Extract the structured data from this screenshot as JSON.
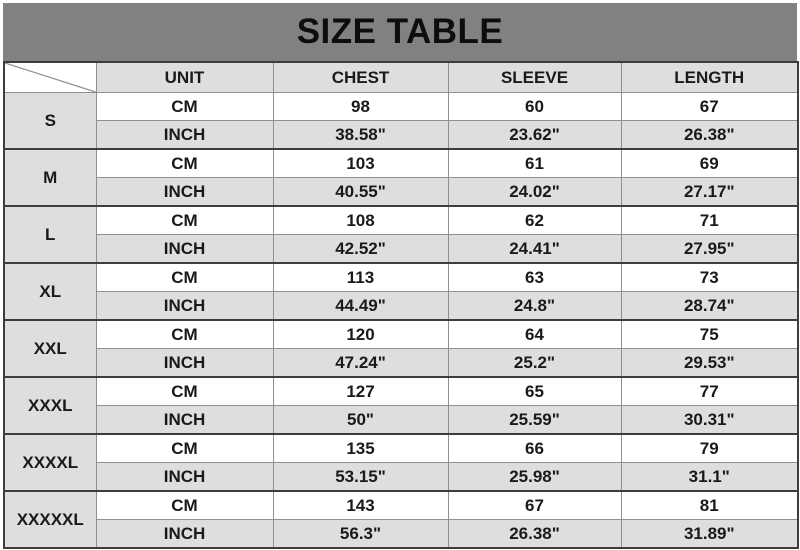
{
  "title": "SIZE TABLE",
  "colors": {
    "title_bar_bg": "#818181",
    "title_text": "#0d0d0d",
    "header_cell_bg": "#dedede",
    "shaded_row_bg": "#dedede",
    "white_row_bg": "#ffffff",
    "thin_border": "#8f8f8f",
    "thick_border": "#3d3d3d",
    "cell_text": "#1a1a1a"
  },
  "chart_data": {
    "type": "table",
    "title": "SIZE TABLE",
    "columns": [
      "",
      "UNIT",
      "CHEST",
      "SLEEVE",
      "LENGTH"
    ],
    "rows": [
      [
        "S",
        "CM",
        "98",
        "60",
        "67"
      ],
      [
        "S",
        "INCH",
        "38.58\"",
        "23.62\"",
        "26.38\""
      ],
      [
        "M",
        "CM",
        "103",
        "61",
        "69"
      ],
      [
        "M",
        "INCH",
        "40.55\"",
        "24.02\"",
        "27.17\""
      ],
      [
        "L",
        "CM",
        "108",
        "62",
        "71"
      ],
      [
        "L",
        "INCH",
        "42.52\"",
        "24.41\"",
        "27.95\""
      ],
      [
        "XL",
        "CM",
        "113",
        "63",
        "73"
      ],
      [
        "XL",
        "INCH",
        "44.49\"",
        "24.8\"",
        "28.74\""
      ],
      [
        "XXL",
        "CM",
        "120",
        "64",
        "75"
      ],
      [
        "XXL",
        "INCH",
        "47.24\"",
        "25.2\"",
        "29.53\""
      ],
      [
        "XXXL",
        "CM",
        "127",
        "65",
        "77"
      ],
      [
        "XXXL",
        "INCH",
        "50\"",
        "25.59\"",
        "30.31\""
      ],
      [
        "XXXXL",
        "CM",
        "135",
        "66",
        "79"
      ],
      [
        "XXXXL",
        "INCH",
        "53.15\"",
        "25.98\"",
        "31.1\""
      ],
      [
        "XXXXXL",
        "CM",
        "143",
        "67",
        "81"
      ],
      [
        "XXXXXL",
        "INCH",
        "56.3\"",
        "26.38\"",
        "31.89\""
      ]
    ]
  }
}
